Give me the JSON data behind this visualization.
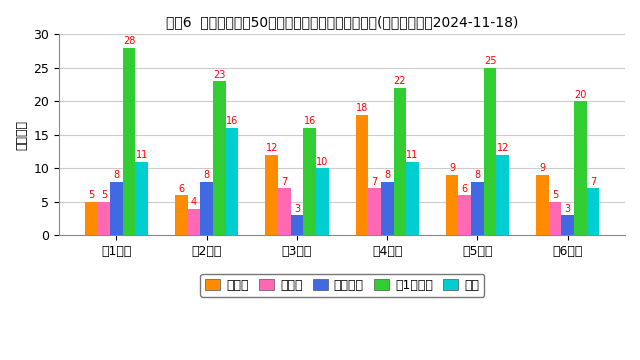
{
  "title": "ロト6  月曜日の直近50回の数字パターンの出現回数(最終抽選日：2024-11-18)",
  "ylabel": "出現回数",
  "categories": [
    "第1数字",
    "第2数字",
    "第3数字",
    "第4数字",
    "第5数字",
    "第6数字"
  ],
  "series": [
    {
      "label": "前数字",
      "color": "#FF8C00",
      "values": [
        5,
        6,
        12,
        18,
        9,
        9
      ]
    },
    {
      "label": "後数字",
      "color": "#FF69B4",
      "values": [
        5,
        4,
        7,
        7,
        6,
        5
      ]
    },
    {
      "label": "継続数字",
      "color": "#4169E1",
      "values": [
        8,
        8,
        3,
        8,
        8,
        3
      ]
    },
    {
      "label": "下1桁数字",
      "color": "#32CD32",
      "values": [
        28,
        23,
        16,
        22,
        25,
        20
      ]
    },
    {
      "label": "連番",
      "color": "#00CED1",
      "values": [
        11,
        16,
        10,
        11,
        12,
        7
      ]
    }
  ],
  "ylim": [
    0,
    30
  ],
  "yticks": [
    0,
    5,
    10,
    15,
    20,
    25,
    30
  ],
  "label_color": "#FF0000",
  "bg_color": "#FFFFFF",
  "grid_color": "#CCCCCC",
  "title_fontsize": 10,
  "axis_fontsize": 9,
  "tick_fontsize": 9,
  "legend_fontsize": 9,
  "bar_label_fontsize": 7
}
